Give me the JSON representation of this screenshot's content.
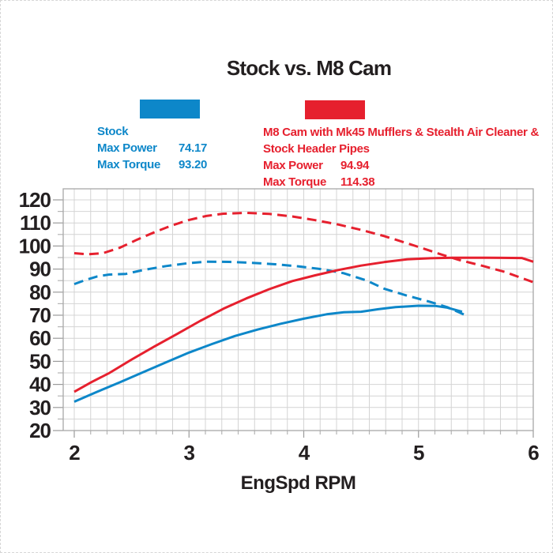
{
  "title": "Stock vs. M8 Cam",
  "colors": {
    "stock_blue": "#0d87c9",
    "m8_red": "#e6202e",
    "text_dark": "#231f20",
    "grid": "#d4d4d4",
    "plot_border": "#a8a8a8",
    "tick": "#9b9b9b"
  },
  "legend": {
    "stock": {
      "name": "Stock",
      "rows": [
        {
          "label": "Max Power",
          "value": "74.17"
        },
        {
          "label": "Max Torque",
          "value": "93.20"
        }
      ]
    },
    "m8": {
      "name_line1": "M8 Cam with Mk45 Mufflers & Stealth Air Cleaner &",
      "name_line2": "Stock Header Pipes",
      "rows": [
        {
          "label": "Max Power",
          "value": "94.94"
        },
        {
          "label": "Max Torque",
          "value": "114.38"
        }
      ]
    }
  },
  "chart_data": {
    "type": "line",
    "title": "Stock vs. M8 Cam",
    "xlabel": "EngSpd RPM",
    "ylabel": "",
    "xlim": [
      1.9,
      6.01
    ],
    "ylim": [
      20,
      124.8
    ],
    "grid": true,
    "x_ticks": [
      "2",
      "3",
      "4",
      "5",
      "6"
    ],
    "y_ticks": [
      "120",
      "110",
      "100",
      "90",
      "80",
      "70",
      "60",
      "50",
      "40",
      "30",
      "20"
    ],
    "y_minor_step": 5,
    "x_minor_divisions_per_unit": 7,
    "series": [
      {
        "name": "Stock Max Power 74.17",
        "color_key": "stock_blue",
        "style": "solid",
        "points": [
          [
            2.0,
            32.5
          ],
          [
            2.2,
            36.8
          ],
          [
            2.4,
            41.0
          ],
          [
            2.6,
            45.3
          ],
          [
            2.8,
            49.6
          ],
          [
            3.0,
            53.8
          ],
          [
            3.2,
            57.5
          ],
          [
            3.4,
            61.0
          ],
          [
            3.6,
            63.8
          ],
          [
            3.8,
            66.3
          ],
          [
            4.0,
            68.5
          ],
          [
            4.2,
            70.4
          ],
          [
            4.35,
            71.3
          ],
          [
            4.5,
            71.5
          ],
          [
            4.65,
            72.6
          ],
          [
            4.8,
            73.5
          ],
          [
            5.0,
            74.1
          ],
          [
            5.15,
            74.0
          ],
          [
            5.25,
            73.3
          ],
          [
            5.38,
            71.5
          ]
        ]
      },
      {
        "name": "Stock Max Torque 93.20",
        "color_key": "stock_blue",
        "style": "dashed",
        "points": [
          [
            2.0,
            83.5
          ],
          [
            2.1,
            85.3
          ],
          [
            2.2,
            86.8
          ],
          [
            2.3,
            87.6
          ],
          [
            2.45,
            87.9
          ],
          [
            2.6,
            89.6
          ],
          [
            2.8,
            91.3
          ],
          [
            3.0,
            92.6
          ],
          [
            3.15,
            93.2
          ],
          [
            3.35,
            93.1
          ],
          [
            3.55,
            92.7
          ],
          [
            3.75,
            92.1
          ],
          [
            3.95,
            91.2
          ],
          [
            4.15,
            90.0
          ],
          [
            4.35,
            88.2
          ],
          [
            4.55,
            85.0
          ],
          [
            4.7,
            81.5
          ],
          [
            4.9,
            78.5
          ],
          [
            5.1,
            75.8
          ],
          [
            5.25,
            73.5
          ],
          [
            5.42,
            69.8
          ]
        ]
      },
      {
        "name": "M8 Cam Max Power 94.94",
        "color_key": "m8_red",
        "style": "solid",
        "points": [
          [
            2.0,
            36.8
          ],
          [
            2.15,
            41.0
          ],
          [
            2.3,
            44.8
          ],
          [
            2.5,
            50.8
          ],
          [
            2.7,
            56.5
          ],
          [
            2.9,
            62.0
          ],
          [
            3.1,
            67.6
          ],
          [
            3.3,
            72.8
          ],
          [
            3.5,
            77.3
          ],
          [
            3.7,
            81.3
          ],
          [
            3.9,
            84.8
          ],
          [
            4.1,
            87.3
          ],
          [
            4.3,
            89.6
          ],
          [
            4.5,
            91.5
          ],
          [
            4.7,
            93.0
          ],
          [
            4.9,
            94.2
          ],
          [
            5.1,
            94.7
          ],
          [
            5.3,
            94.9
          ],
          [
            5.6,
            94.9
          ],
          [
            5.9,
            94.8
          ],
          [
            6.0,
            93.2
          ]
        ]
      },
      {
        "name": "M8 Cam Max Torque 114.38",
        "color_key": "m8_red",
        "style": "dashed",
        "points": [
          [
            2.0,
            96.9
          ],
          [
            2.12,
            96.4
          ],
          [
            2.25,
            96.9
          ],
          [
            2.4,
            99.3
          ],
          [
            2.55,
            102.8
          ],
          [
            2.7,
            106.0
          ],
          [
            2.85,
            108.9
          ],
          [
            3.0,
            111.3
          ],
          [
            3.15,
            113.0
          ],
          [
            3.3,
            114.0
          ],
          [
            3.5,
            114.4
          ],
          [
            3.7,
            113.9
          ],
          [
            3.9,
            112.8
          ],
          [
            4.1,
            111.2
          ],
          [
            4.3,
            109.3
          ],
          [
            4.5,
            107.0
          ],
          [
            4.7,
            104.3
          ],
          [
            4.9,
            101.2
          ],
          [
            5.05,
            98.8
          ],
          [
            5.2,
            96.3
          ],
          [
            5.35,
            94.0
          ],
          [
            5.55,
            91.5
          ],
          [
            5.75,
            88.8
          ],
          [
            6.0,
            84.3
          ]
        ]
      }
    ]
  }
}
